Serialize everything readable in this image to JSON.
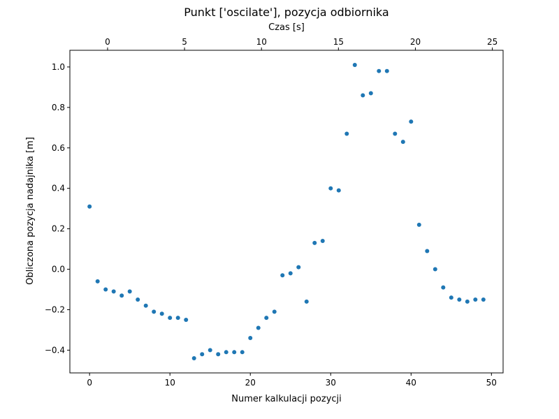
{
  "chart_data": {
    "type": "scatter",
    "title": "Punkt ['oscilate'], pozycja odbiornika",
    "xlabel": "Numer kalkulacji pozycji",
    "ylabel": "Obliczona pozycja nadajnika [m]",
    "x2label": "Czas [s]",
    "xlim": [
      -2.45,
      51.45
    ],
    "ylim": [
      -0.5125,
      1.0825
    ],
    "x2lim": [
      -2.45,
      25.7
    ],
    "x_ticks": [
      "0",
      "10",
      "20",
      "30",
      "40",
      "50"
    ],
    "y_ticks": [
      "−0.4",
      "−0.2",
      "0.0",
      "0.2",
      "0.4",
      "0.6",
      "0.8",
      "1.0"
    ],
    "x2_ticks": [
      "0",
      "5",
      "10",
      "15",
      "20",
      "25"
    ],
    "grid": false,
    "marker_color": "#1f77b4",
    "series": [
      {
        "x": [
          0,
          1,
          2,
          3,
          4,
          5,
          6,
          7,
          8,
          9,
          10,
          11,
          12,
          13,
          14,
          15,
          16,
          17,
          18,
          19,
          20,
          21,
          22,
          23,
          24,
          25,
          26,
          27,
          28,
          29,
          30,
          31,
          32,
          33,
          34,
          35,
          36,
          37,
          38,
          39,
          40,
          41,
          42,
          43,
          44,
          45,
          46,
          47,
          48,
          49
        ],
        "y": [
          0.31,
          -0.06,
          -0.1,
          -0.11,
          -0.13,
          -0.11,
          -0.15,
          -0.18,
          -0.21,
          -0.22,
          -0.24,
          -0.24,
          -0.25,
          -0.44,
          -0.42,
          -0.4,
          -0.42,
          -0.41,
          -0.41,
          -0.41,
          -0.34,
          -0.29,
          -0.24,
          -0.21,
          -0.03,
          -0.02,
          0.01,
          -0.16,
          0.13,
          0.14,
          0.4,
          0.39,
          0.67,
          1.01,
          0.86,
          0.87,
          0.98,
          0.98,
          0.67,
          0.63,
          0.73,
          0.22,
          0.09,
          0.0,
          -0.09,
          -0.14,
          -0.15,
          -0.16,
          -0.15,
          -0.15
        ]
      }
    ]
  }
}
